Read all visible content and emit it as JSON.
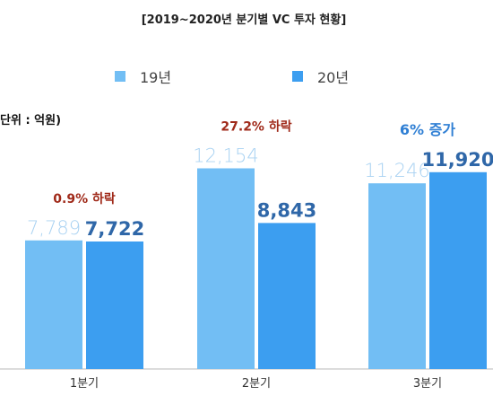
{
  "colors": {
    "series_19": "#72bef4",
    "series_20": "#3c9ef0",
    "value_19_text": "#a9d2f2",
    "value_20_text": "#2f67a8",
    "annotation_decrease": "#a02a1a",
    "annotation_increase": "#2f7fd4",
    "axis": "#b8b8b8"
  },
  "chart_data": {
    "type": "bar",
    "title": "[2019~2020년 분기별 VC 투자 현황]",
    "unit_label": "단위 : 억원)",
    "categories": [
      "1분기",
      "2분기",
      "3분기"
    ],
    "series": [
      {
        "name": "19년",
        "values": [
          7789,
          12154,
          11246
        ],
        "labels": [
          "7,789",
          "12,154",
          "11,246"
        ]
      },
      {
        "name": "20년",
        "values": [
          7722,
          8843,
          11920
        ],
        "labels": [
          "7,722",
          "8,843",
          "11,920"
        ]
      }
    ],
    "annotations": [
      {
        "text": "0.9% 하락",
        "direction": "decrease"
      },
      {
        "text": "27.2% 하락",
        "direction": "decrease"
      },
      {
        "text": "6% 증가",
        "direction": "increase"
      }
    ],
    "legend_position": "top-center",
    "grid": false,
    "ylim": [
      0,
      14000
    ]
  }
}
